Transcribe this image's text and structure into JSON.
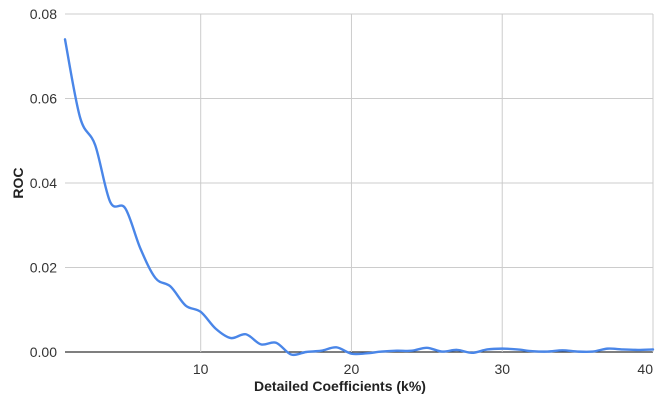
{
  "chart_data": {
    "type": "line",
    "title": "",
    "xlabel": "Detailed Coefficients (k%)",
    "ylabel": "ROC",
    "xlim": [
      1,
      40
    ],
    "ylim": [
      0,
      0.08
    ],
    "x_ticks": [
      10,
      20,
      30,
      40
    ],
    "x_tick_labels": [
      "10",
      "20",
      "30",
      "40"
    ],
    "y_ticks": [
      0,
      0.02,
      0.04,
      0.06,
      0.08
    ],
    "y_tick_labels": [
      "0.00",
      "0.02",
      "0.04",
      "0.06",
      "0.08"
    ],
    "grid": true,
    "legend": "none",
    "colors": {
      "line": "#4a86e8",
      "grid": "#cccccc",
      "baseline": "#333333"
    },
    "series": [
      {
        "x": [
          1,
          2,
          3,
          4,
          5,
          6,
          7,
          8,
          9,
          10,
          11,
          12,
          13,
          14,
          15,
          16,
          17,
          18,
          19,
          20,
          21,
          22,
          23,
          24,
          25,
          26,
          27,
          28,
          29,
          30,
          31,
          32,
          33,
          34,
          35,
          36,
          37,
          38,
          39,
          40
        ],
        "values": [
          0.074,
          0.0555,
          0.049,
          0.0355,
          0.034,
          0.0245,
          0.0175,
          0.0155,
          0.011,
          0.0095,
          0.0055,
          0.0033,
          0.0042,
          0.0018,
          0.0022,
          -0.0006,
          0.0,
          0.0003,
          0.0011,
          -0.0004,
          -0.0003,
          0.0001,
          0.0003,
          0.0003,
          0.001,
          0.0001,
          0.0005,
          -0.0002,
          0.0006,
          0.0008,
          0.0006,
          0.0002,
          0.0001,
          0.0004,
          0.0001,
          0.0001,
          0.0008,
          0.0006,
          0.0005,
          0.0006
        ]
      }
    ]
  }
}
